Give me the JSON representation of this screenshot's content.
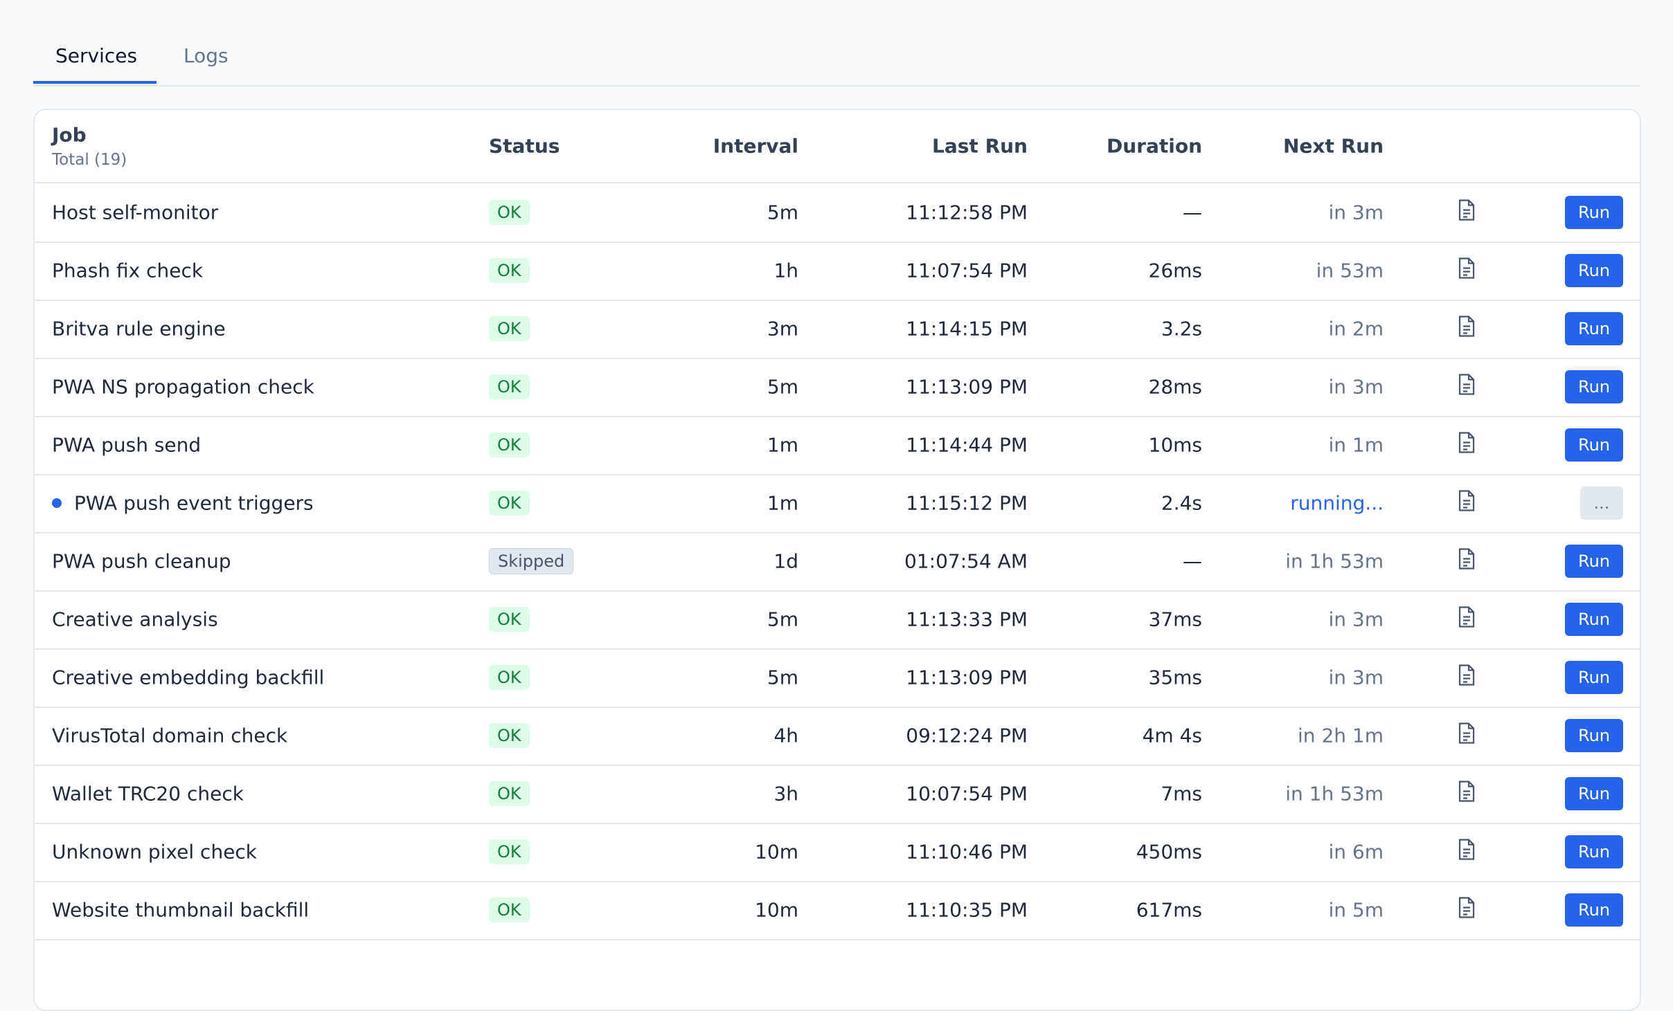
{
  "tabs": [
    "Services",
    "Logs"
  ],
  "table": {
    "columns": [
      "Job",
      "Status",
      "Interval",
      "Last Run",
      "Duration",
      "Next Run"
    ],
    "total": "Total (19)",
    "rows": [
      {
        "job": "Host self-monitor",
        "status": "OK",
        "interval": "5m",
        "last_run": "11:12:58 PM",
        "duration": "—",
        "next_run": "in 3m",
        "action": "Run",
        "running": false
      },
      {
        "job": "Phash fix check",
        "status": "OK",
        "interval": "1h",
        "last_run": "11:07:54 PM",
        "duration": "26ms",
        "next_run": "in 53m",
        "action": "Run",
        "running": false
      },
      {
        "job": "Britva rule engine",
        "status": "OK",
        "interval": "3m",
        "last_run": "11:14:15 PM",
        "duration": "3.2s",
        "next_run": "in 2m",
        "action": "Run",
        "running": false
      },
      {
        "job": "PWA NS propagation check",
        "status": "OK",
        "interval": "5m",
        "last_run": "11:13:09 PM",
        "duration": "28ms",
        "next_run": "in 3m",
        "action": "Run",
        "running": false
      },
      {
        "job": "PWA push send",
        "status": "OK",
        "interval": "1m",
        "last_run": "11:14:44 PM",
        "duration": "10ms",
        "next_run": "in 1m",
        "action": "Run",
        "running": false
      },
      {
        "job": "PWA push event triggers",
        "status": "OK",
        "interval": "1m",
        "last_run": "11:15:12 PM",
        "duration": "2.4s",
        "next_run": "running...",
        "action": "...",
        "running": true
      },
      {
        "job": "PWA push cleanup",
        "status": "Skipped",
        "interval": "1d",
        "last_run": "01:07:54 AM",
        "duration": "—",
        "next_run": "in 1h 53m",
        "action": "Run",
        "running": false
      },
      {
        "job": "Creative analysis",
        "status": "OK",
        "interval": "5m",
        "last_run": "11:13:33 PM",
        "duration": "37ms",
        "next_run": "in 3m",
        "action": "Run",
        "running": false
      },
      {
        "job": "Creative embedding backfill",
        "status": "OK",
        "interval": "5m",
        "last_run": "11:13:09 PM",
        "duration": "35ms",
        "next_run": "in 3m",
        "action": "Run",
        "running": false
      },
      {
        "job": "VirusTotal domain check",
        "status": "OK",
        "interval": "4h",
        "last_run": "09:12:24 PM",
        "duration": "4m 4s",
        "next_run": "in 2h 1m",
        "action": "Run",
        "running": false
      },
      {
        "job": "Wallet TRC20 check",
        "status": "OK",
        "interval": "3h",
        "last_run": "10:07:54 PM",
        "duration": "7ms",
        "next_run": "in 1h 53m",
        "action": "Run",
        "running": false
      },
      {
        "job": "Unknown pixel check",
        "status": "OK",
        "interval": "10m",
        "last_run": "11:10:46 PM",
        "duration": "450ms",
        "next_run": "in 6m",
        "action": "Run",
        "running": false
      },
      {
        "job": "Website thumbnail backfill",
        "status": "OK",
        "interval": "10m",
        "last_run": "11:10:35 PM",
        "duration": "617ms",
        "next_run": "in 5m",
        "action": "Run",
        "running": false
      }
    ]
  }
}
